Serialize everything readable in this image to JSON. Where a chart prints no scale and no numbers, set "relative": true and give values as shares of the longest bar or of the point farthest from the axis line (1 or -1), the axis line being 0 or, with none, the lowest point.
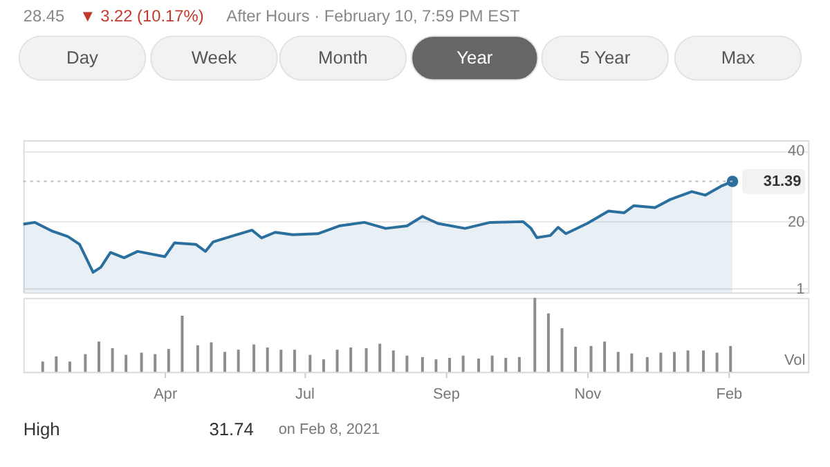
{
  "chart_data": [
    {
      "type": "area",
      "annotations": [
        "28.45",
        "▼ 3.22 (10.17%)",
        "After Hours · February 10, 7:59 PM EST",
        "Day",
        "Week",
        "Month",
        "Year",
        "5 Year",
        "Max",
        "High",
        "31.74",
        "on Feb 8, 2021"
      ],
      "x": [
        "2020-02-10",
        "2020-02-16",
        "2020-02-25",
        "2020-03-04",
        "2020-03-10",
        "2020-03-17",
        "2020-03-21",
        "2020-03-26",
        "2020-04-02",
        "2020-04-09",
        "2020-04-23",
        "2020-04-28",
        "2020-05-09",
        "2020-05-14",
        "2020-05-18",
        "2020-05-27",
        "2020-06-07",
        "2020-06-12",
        "2020-06-19",
        "2020-06-28",
        "2020-07-11",
        "2020-07-22",
        "2020-08-04",
        "2020-08-15",
        "2020-08-26",
        "2020-09-03",
        "2020-09-11",
        "2020-09-25",
        "2020-10-08",
        "2020-10-25",
        "2020-10-29",
        "2020-11-01",
        "2020-11-08",
        "2020-11-12",
        "2020-11-16",
        "2020-11-27",
        "2020-12-08",
        "2020-12-16",
        "2020-12-21",
        "2021-01-01",
        "2021-01-09",
        "2021-01-20",
        "2021-01-27",
        "2021-02-04",
        "2021-02-10"
      ],
      "series": [
        {
          "color": "#2a6f9e",
          "values": [
            19.3,
            19.8,
            17.3,
            15.8,
            13.6,
            5.7,
            7.1,
            11.3,
            9.8,
            11.6,
            10.1,
            14.0,
            13.6,
            11.6,
            14.3,
            15.8,
            17.6,
            15.4,
            17.0,
            16.3,
            16.6,
            18.8,
            19.8,
            18.1,
            18.8,
            21.5,
            19.5,
            18.1,
            19.8,
            20.0,
            18.1,
            15.5,
            16.1,
            18.4,
            16.6,
            19.5,
            23.0,
            22.5,
            24.5,
            24.0,
            26.3,
            28.5,
            27.5,
            30.0,
            31.39
          ]
        }
      ],
      "xlim": [
        "2020-02-10",
        "2021-03-21"
      ],
      "ylim": [
        0,
        43
      ],
      "yticks": [
        40,
        20,
        1
      ],
      "grid": "y",
      "tick_labels": "y",
      "ref_lines": [
        {
          "axis": "y",
          "value": 31.39,
          "label": "31.39",
          "color": "#bbbbbb",
          "line_style": "dotted"
        }
      ]
    },
    {
      "type": "bar",
      "relative": true,
      "ylabel": "Vol",
      "color": "#8c8c8c",
      "tick_labels": "x",
      "x": [
        "2020-02-20",
        "2020-02-27",
        "2020-03-05",
        "2020-03-13",
        "2020-03-20",
        "2020-03-27",
        "2020-04-03",
        "2020-04-11",
        "2020-04-18",
        "2020-04-25",
        "2020-05-02",
        "2020-05-10",
        "2020-05-17",
        "2020-05-24",
        "2020-05-31",
        "2020-06-08",
        "2020-06-15",
        "2020-06-22",
        "2020-06-29",
        "2020-07-07",
        "2020-07-14",
        "2020-07-21",
        "2020-07-28",
        "2020-08-05",
        "2020-08-12",
        "2020-08-19",
        "2020-08-26",
        "2020-09-03",
        "2020-09-10",
        "2020-09-17",
        "2020-09-24",
        "2020-10-02",
        "2020-10-09",
        "2020-10-16",
        "2020-10-23",
        "2020-10-31",
        "2020-11-07",
        "2020-11-14",
        "2020-11-21",
        "2020-11-29",
        "2020-12-06",
        "2020-12-13",
        "2020-12-20",
        "2020-12-28",
        "2021-01-04",
        "2021-01-11",
        "2021-01-18",
        "2021-01-26",
        "2021-02-02",
        "2021-02-09"
      ],
      "values": [
        0.14,
        0.21,
        0.14,
        0.24,
        0.41,
        0.32,
        0.23,
        0.26,
        0.24,
        0.31,
        0.76,
        0.36,
        0.4,
        0.27,
        0.3,
        0.37,
        0.33,
        0.3,
        0.3,
        0.23,
        0.17,
        0.3,
        0.33,
        0.32,
        0.38,
        0.29,
        0.22,
        0.2,
        0.17,
        0.19,
        0.22,
        0.18,
        0.22,
        0.19,
        0.2,
        1,
        0.79,
        0.59,
        0.34,
        0.35,
        0.41,
        0.27,
        0.25,
        0.2,
        0.26,
        0.27,
        0.29,
        0.29,
        0.26,
        0.35
      ],
      "xlim": [
        "2020-02-10",
        "2021-03-21"
      ],
      "xticks": [
        {
          "value": "2020-04-23",
          "label": "Apr"
        },
        {
          "value": "2020-07-04",
          "label": "Jul"
        },
        {
          "value": "2020-09-15",
          "label": "Sep"
        },
        {
          "value": "2020-11-27",
          "label": "Nov"
        },
        {
          "value": "2021-02-08",
          "label": "Feb"
        }
      ]
    }
  ]
}
